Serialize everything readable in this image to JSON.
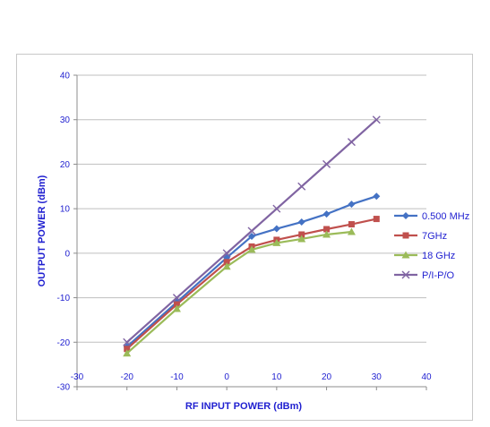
{
  "chart_data": {
    "type": "line",
    "xlabel": "RF INPUT POWER (dBm)",
    "ylabel": "OUTPUT POWER (dBm)",
    "xlim": [
      -30,
      40
    ],
    "ylim": [
      -30,
      40
    ],
    "x_ticks": [
      -30,
      -20,
      -10,
      0,
      10,
      20,
      30,
      40
    ],
    "y_ticks": [
      -30,
      -20,
      -10,
      0,
      10,
      20,
      30,
      40
    ],
    "grid": "horizontal",
    "legend_position": "right",
    "series": [
      {
        "name": "0.500 MHz",
        "color": "#4472c4",
        "marker": "diamond",
        "x": [
          -20,
          -10,
          0,
          5,
          10,
          15,
          20,
          25,
          30
        ],
        "y": [
          -21,
          -11,
          -1,
          3.8,
          5.5,
          7,
          8.8,
          11,
          12.8
        ]
      },
      {
        "name": "7GHz",
        "color": "#c0504d",
        "marker": "square",
        "x": [
          -20,
          -10,
          0,
          5,
          10,
          15,
          20,
          25,
          30
        ],
        "y": [
          -21.5,
          -11.5,
          -2,
          1.5,
          3,
          4.2,
          5.4,
          6.5,
          7.7
        ]
      },
      {
        "name": "18 GHz",
        "color": "#9bbb59",
        "marker": "triangle",
        "x": [
          -20,
          -10,
          0,
          5,
          10,
          15,
          20,
          25
        ],
        "y": [
          -22.5,
          -12.5,
          -3,
          0.8,
          2.3,
          3.2,
          4.2,
          4.8
        ]
      },
      {
        "name": "P/I-P/O",
        "color": "#8064a2",
        "marker": "x",
        "x": [
          -20,
          -10,
          0,
          5,
          10,
          15,
          20,
          25,
          30
        ],
        "y": [
          -20,
          -10,
          0,
          5,
          10,
          15,
          20,
          25,
          30
        ]
      }
    ]
  }
}
